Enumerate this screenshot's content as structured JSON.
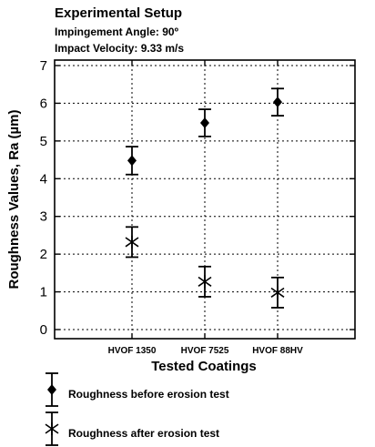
{
  "header": {
    "title": "Experimental Setup",
    "line1": "Impingement Angle: 90º",
    "line2": "Impact Velocity: 9.33 m/s"
  },
  "chart_data": {
    "type": "scatter",
    "categories": [
      "HVOF 1350",
      "HVOF 7525",
      "HVOF 88HV"
    ],
    "xlabel": "Tested Coatings",
    "ylabel": "Roughness Values, Ra (µm)",
    "ylim": [
      0,
      7
    ],
    "yticks": [
      0,
      1,
      2,
      3,
      4,
      5,
      6,
      7
    ],
    "grid": true,
    "legend_position": "bottom",
    "series": [
      {
        "name": "Roughness before erosion test",
        "marker": "diamond",
        "values": [
          4.48,
          5.48,
          6.03
        ],
        "errors": [
          0.37,
          0.36,
          0.36
        ]
      },
      {
        "name": "Roughness after erosion test",
        "marker": "asterisk",
        "values": [
          2.32,
          1.27,
          0.98
        ],
        "errors": [
          0.4,
          0.4,
          0.4
        ]
      }
    ]
  }
}
